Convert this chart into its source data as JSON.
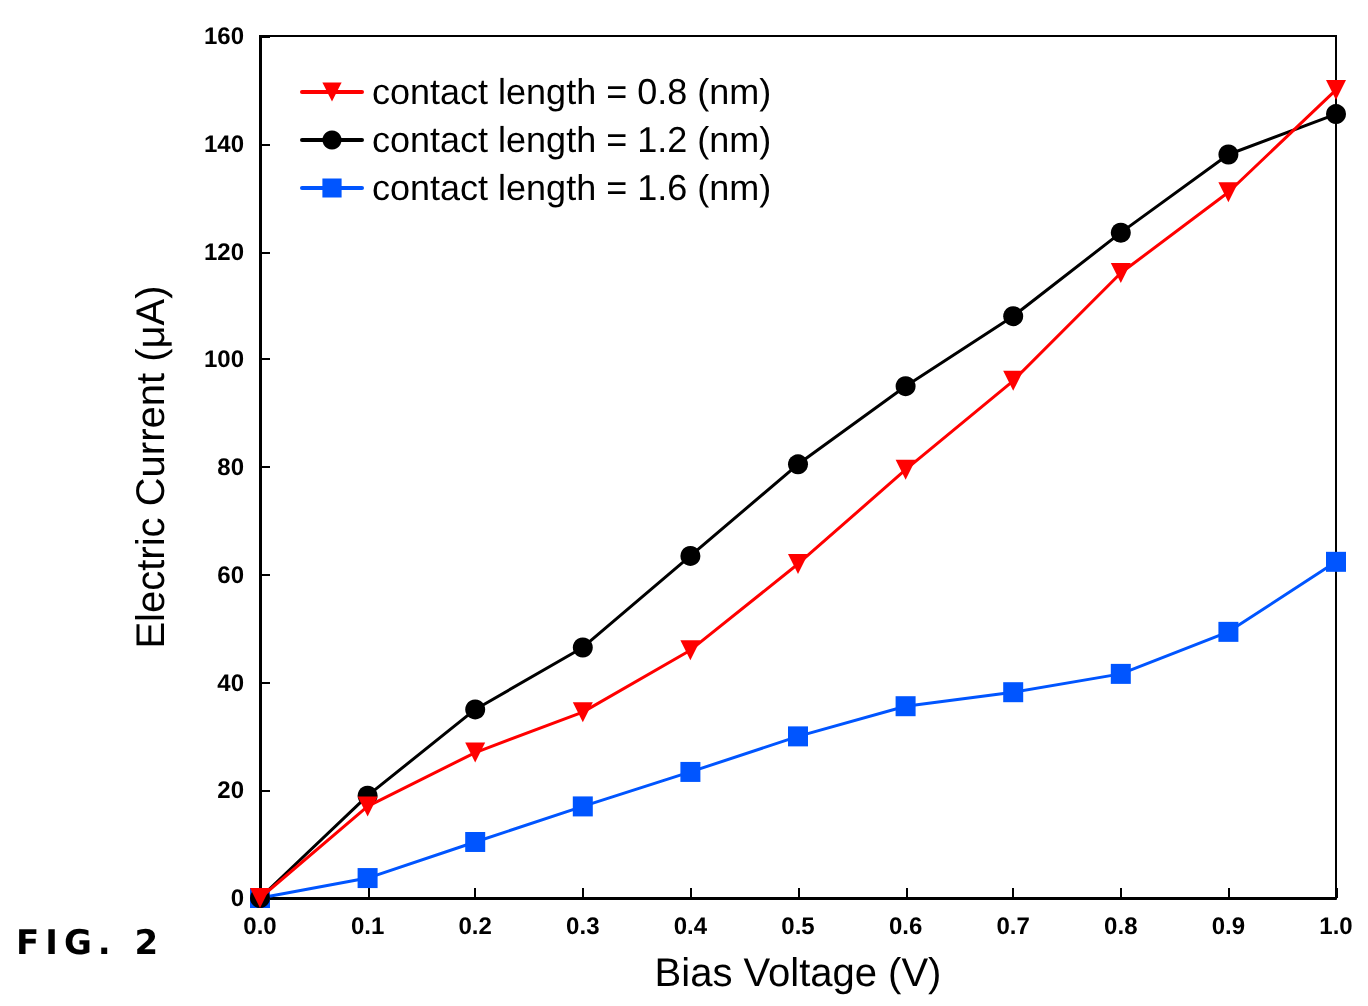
{
  "chart_data": {
    "type": "line",
    "xlabel": "Bias Voltage (V)",
    "ylabel": "Electric Current (μA)",
    "annotations": [
      "FIG. 2"
    ],
    "x": [
      0,
      0.1,
      0.2,
      0.3,
      0.4,
      0.5,
      0.6,
      0.7,
      0.8,
      0.9,
      1.0
    ],
    "xlim": [
      0,
      1
    ],
    "xticks": [
      {
        "value": 0,
        "label": "0.0"
      },
      {
        "value": 0.1,
        "label": "0.1"
      },
      {
        "value": 0.2,
        "label": "0.2"
      },
      {
        "value": 0.3,
        "label": "0.3"
      },
      {
        "value": 0.4,
        "label": "0.4"
      },
      {
        "value": 0.5,
        "label": "0.5"
      },
      {
        "value": 0.6,
        "label": "0.6"
      },
      {
        "value": 0.7,
        "label": "0.7"
      },
      {
        "value": 0.8,
        "label": "0.8"
      },
      {
        "value": 0.9,
        "label": "0.9"
      },
      {
        "value": 1,
        "label": "1.0"
      }
    ],
    "ylim": [
      0,
      160
    ],
    "yticks": [
      0,
      20,
      40,
      60,
      80,
      100,
      120,
      140,
      160
    ],
    "grid": false,
    "legend": "top left",
    "line_style": "solid",
    "series": [
      {
        "name": "contact length = 0.8 (nm)",
        "color": "#ff0000",
        "marker": "triangle",
        "values": [
          0,
          17,
          27,
          34.5,
          46,
          62,
          79.5,
          96,
          116,
          131,
          150
        ]
      },
      {
        "name": "contact length = 1.2 (nm)",
        "color": "#000000",
        "marker": "circle",
        "values": [
          0,
          19,
          35,
          46.5,
          63.5,
          80.5,
          95,
          108,
          123.5,
          138,
          145.5
        ]
      },
      {
        "name": "contact length = 1.6 (nm)",
        "color": "#0055ff",
        "marker": "square",
        "values": [
          0,
          3.7,
          10.4,
          17,
          23.4,
          30,
          35.6,
          38.2,
          41.6,
          49.4,
          62.4
        ]
      }
    ]
  }
}
